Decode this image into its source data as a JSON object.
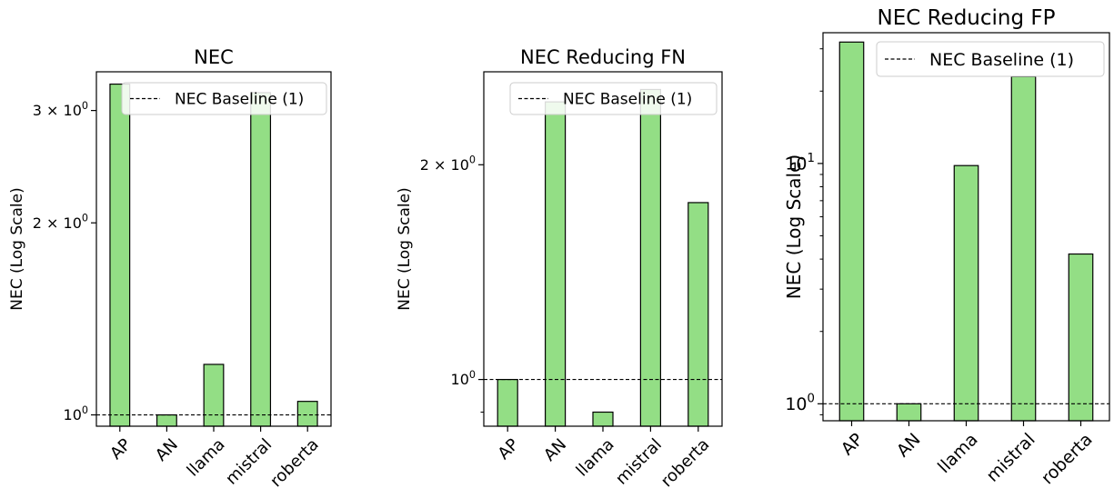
{
  "chart_data": [
    {
      "type": "bar",
      "title": "NEC",
      "ylabel": "NEC (Log Scale)",
      "yscale": "log",
      "ylim": [
        0.96,
        3.45
      ],
      "categories": [
        "AP",
        "AN",
        "llama",
        "mistral",
        "roberta"
      ],
      "values": [
        3.3,
        1.0,
        1.2,
        3.2,
        1.05
      ],
      "yticks": [
        {
          "value": 1,
          "base": "10",
          "exp": "0",
          "mult": ""
        },
        {
          "value": 2,
          "base": "10",
          "exp": "0",
          "mult": "2 × "
        },
        {
          "value": 3,
          "base": "10",
          "exp": "0",
          "mult": "3 × "
        }
      ],
      "baseline": {
        "value": 1,
        "label": "NEC Baseline (1)"
      },
      "bar_color": "#93de85",
      "legend": "top-right"
    },
    {
      "type": "bar",
      "title": "NEC Reducing FN",
      "ylabel": "NEC (Log Scale)",
      "yscale": "log",
      "ylim": [
        0.86,
        2.7
      ],
      "categories": [
        "AP",
        "AN",
        "llama",
        "mistral",
        "roberta"
      ],
      "values": [
        1.0,
        2.45,
        0.9,
        2.55,
        1.77
      ],
      "yticks": [
        {
          "value": 1,
          "base": "10",
          "exp": "0",
          "mult": ""
        },
        {
          "value": 2,
          "base": "10",
          "exp": "0",
          "mult": "2 × "
        }
      ],
      "baseline": {
        "value": 1,
        "label": "NEC Baseline (1)"
      },
      "bar_color": "#93de85",
      "legend": "top-right"
    },
    {
      "type": "bar",
      "title": "NEC Reducing FP",
      "ylabel": "NEC (Log Scale)",
      "yscale": "log",
      "ylim": [
        0.85,
        35
      ],
      "categories": [
        "AP",
        "AN",
        "llama",
        "mistral",
        "roberta"
      ],
      "values": [
        32,
        1.0,
        9.8,
        23,
        4.2
      ],
      "yticks": [
        {
          "value": 1,
          "base": "10",
          "exp": "0",
          "mult": ""
        },
        {
          "value": 10,
          "base": "10",
          "exp": "1",
          "mult": ""
        }
      ],
      "baseline": {
        "value": 1,
        "label": "NEC Baseline (1)"
      },
      "bar_color": "#93de85",
      "legend": "top-right"
    }
  ]
}
